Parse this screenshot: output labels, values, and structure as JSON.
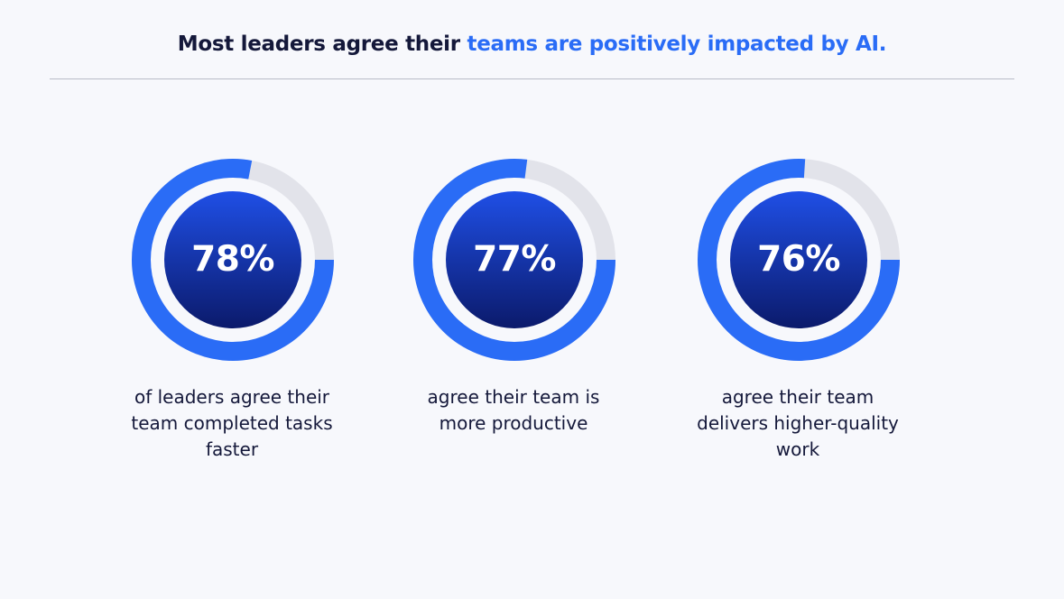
{
  "header": {
    "title_plain": "Most leaders agree their ",
    "title_highlight": "teams are positively impacted by AI."
  },
  "colors": {
    "accent": "#2a6cf6",
    "ring_track": "#e2e3ea",
    "disc_top": "#1f4fe6",
    "disc_bottom": "#0b1a6b",
    "text_dark": "#14183a"
  },
  "chart_data": {
    "type": "donut",
    "title": "Most leaders agree their teams are positively impacted by AI.",
    "items": [
      {
        "value": 78,
        "label": "78%",
        "description": "of leaders agree their team completed tasks faster"
      },
      {
        "value": 77,
        "label": "77%",
        "description": "agree their team is more productive"
      },
      {
        "value": 76,
        "label": "76%",
        "description": "agree their team delivers higher-quality work"
      }
    ],
    "max": 100
  },
  "stats": [
    {
      "pct_label": "78%",
      "desc_line1": "of leaders agree their",
      "desc_line2": "team completed tasks",
      "desc_line3": "faster"
    },
    {
      "pct_label": "77%",
      "desc_line1": "agree their team is",
      "desc_line2": "more productive",
      "desc_line3": ""
    },
    {
      "pct_label": "76%",
      "desc_line1": "agree their team",
      "desc_line2": "delivers higher-quality",
      "desc_line3": "work"
    }
  ]
}
